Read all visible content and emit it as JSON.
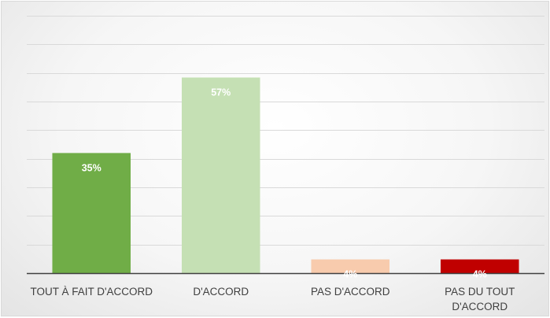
{
  "chart_data": {
    "type": "bar",
    "title": "",
    "xlabel": "",
    "ylabel": "",
    "categories": [
      "TOUT À FAIT D'ACCORD",
      "D'ACCORD",
      "PAS D'ACCORD",
      "PAS DU TOUT D'ACCORD"
    ],
    "category_lines": [
      [
        "TOUT À FAIT D'ACCORD"
      ],
      [
        "D'ACCORD"
      ],
      [
        "PAS D'ACCORD"
      ],
      [
        "PAS DU TOUT",
        "D'ACCORD"
      ]
    ],
    "values": [
      35,
      57,
      4,
      4
    ],
    "data_labels": [
      "35%",
      "57%",
      "4%",
      "4%"
    ],
    "bar_colors": [
      "#70ad47",
      "#c5e0b4",
      "#f8cbad",
      "#c00000"
    ],
    "ylim": [
      0,
      75
    ],
    "gridline_step": 8.333,
    "grid": true,
    "legend": "none"
  }
}
